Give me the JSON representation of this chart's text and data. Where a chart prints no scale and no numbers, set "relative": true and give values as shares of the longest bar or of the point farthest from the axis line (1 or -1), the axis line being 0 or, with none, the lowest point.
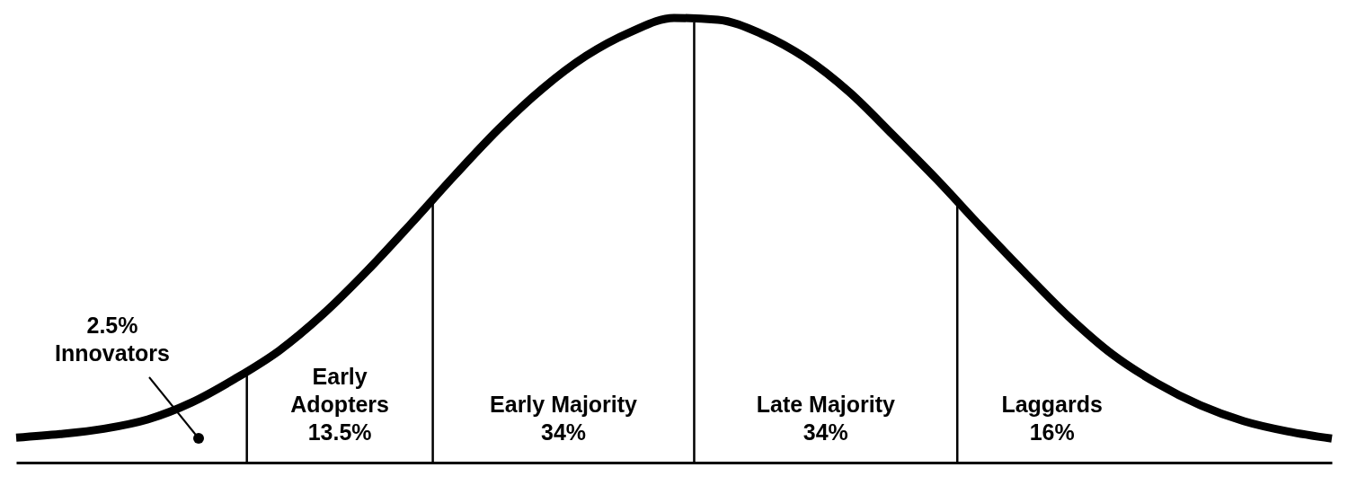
{
  "chart_data": {
    "type": "line",
    "relative": true,
    "color": "#000000",
    "categories": [
      null,
      null,
      null,
      null,
      null,
      null,
      null,
      null,
      null,
      null,
      null,
      null,
      null,
      null,
      null,
      null,
      null,
      null,
      null,
      null,
      null,
      null,
      null,
      null,
      null,
      null,
      null,
      null,
      null,
      null,
      null
    ],
    "values": [
      0.056,
      0.064,
      0.076,
      0.097,
      0.135,
      0.189,
      0.252,
      0.334,
      0.431,
      0.537,
      0.646,
      0.75,
      0.841,
      0.915,
      0.968,
      1,
      0.996,
      0.964,
      0.91,
      0.833,
      0.736,
      0.636,
      0.53,
      0.427,
      0.328,
      0.243,
      0.179,
      0.129,
      0.093,
      0.07,
      0.054
    ],
    "annotations": [
      "2.5%\nInnovators",
      "Early\nAdopters\n13.5%",
      "Early Majority\n34%",
      "Late Majority\n34%",
      "Laggards\n16%"
    ]
  }
}
